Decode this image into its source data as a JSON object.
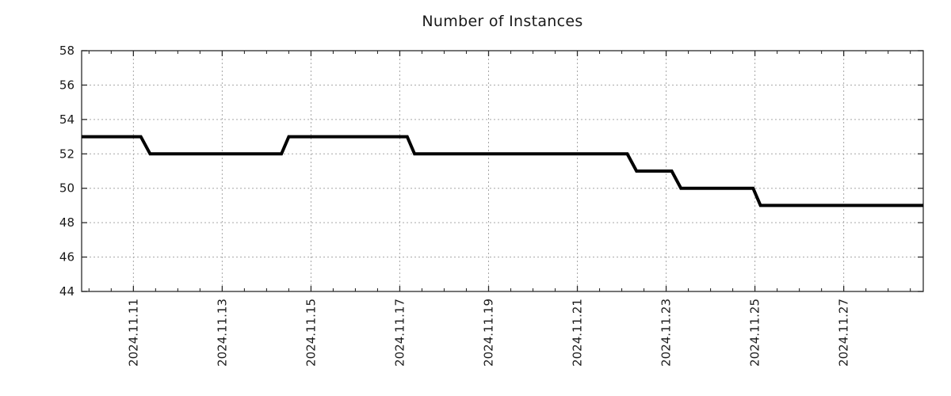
{
  "chart_data": {
    "type": "line",
    "title": "Number of Instances",
    "series": [
      {
        "name": "Number of Instances",
        "color": "#000000",
        "line_width": 4,
        "points": [
          [
            "2024-11-09 20:00",
            53
          ],
          [
            "2024-11-11 04:00",
            53
          ],
          [
            "2024-11-11 09:00",
            52
          ],
          [
            "2024-11-14 08:00",
            52
          ],
          [
            "2024-11-14 12:00",
            53
          ],
          [
            "2024-11-17 04:00",
            53
          ],
          [
            "2024-11-17 08:00",
            52
          ],
          [
            "2024-11-22 03:00",
            52
          ],
          [
            "2024-11-22 08:00",
            51
          ],
          [
            "2024-11-23 03:00",
            51
          ],
          [
            "2024-11-23 08:00",
            50
          ],
          [
            "2024-11-24 23:00",
            50
          ],
          [
            "2024-11-25 03:00",
            49
          ],
          [
            "2024-11-28 19:00",
            49
          ]
        ]
      }
    ],
    "xlabel": "",
    "ylabel": "",
    "x_axis": {
      "domain": [
        "2024-11-09 20:00",
        "2024-11-28 19:00"
      ],
      "major_ticks": [
        "2024-11-11 00:00",
        "2024-11-13 00:00",
        "2024-11-15 00:00",
        "2024-11-17 00:00",
        "2024-11-19 00:00",
        "2024-11-21 00:00",
        "2024-11-23 00:00",
        "2024-11-25 00:00",
        "2024-11-27 00:00"
      ],
      "tick_labels": [
        "2024.11.11",
        "2024.11.13",
        "2024.11.15",
        "2024.11.17",
        "2024.11.19",
        "2024.11.21",
        "2024.11.23",
        "2024.11.25",
        "2024.11.27"
      ],
      "minor_tick_interval_days": 0.5,
      "label_rotation_deg": 90
    },
    "y_axis": {
      "min": 44,
      "max": 58,
      "ticks": [
        44,
        46,
        48,
        50,
        52,
        54,
        56,
        58
      ],
      "tick_labels": [
        "44",
        "46",
        "48",
        "50",
        "52",
        "54",
        "56",
        "58"
      ]
    },
    "grid": {
      "visible": true,
      "style": "dashed",
      "color": "#a6a6a6"
    },
    "legend": {
      "visible": false
    }
  },
  "styles": {
    "background": "#ffffff",
    "text_color": "#1a1a1a",
    "axis_color": "#2b2b2b",
    "grid_color": "#a6a6a6",
    "line_color": "#000000"
  }
}
